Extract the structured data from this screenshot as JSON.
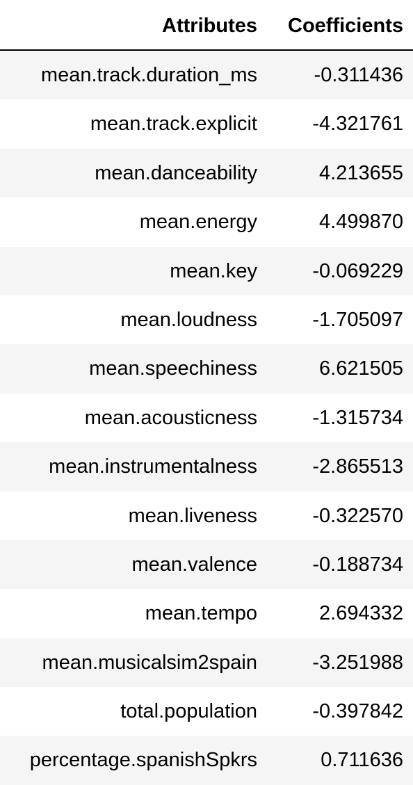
{
  "table": {
    "headers": {
      "attributes": "Attributes",
      "coefficients": "Coefficients"
    },
    "rows": [
      {
        "attribute": "mean.track.duration_ms",
        "coefficient": "-0.311436"
      },
      {
        "attribute": "mean.track.explicit",
        "coefficient": "-4.321761"
      },
      {
        "attribute": "mean.danceability",
        "coefficient": "4.213655"
      },
      {
        "attribute": "mean.energy",
        "coefficient": "4.499870"
      },
      {
        "attribute": "mean.key",
        "coefficient": "-0.069229"
      },
      {
        "attribute": "mean.loudness",
        "coefficient": "-1.705097"
      },
      {
        "attribute": "mean.speechiness",
        "coefficient": "6.621505"
      },
      {
        "attribute": "mean.acousticness",
        "coefficient": "-1.315734"
      },
      {
        "attribute": "mean.instrumentalness",
        "coefficient": "-2.865513"
      },
      {
        "attribute": "mean.liveness",
        "coefficient": "-0.322570"
      },
      {
        "attribute": "mean.valence",
        "coefficient": "-0.188734"
      },
      {
        "attribute": "mean.tempo",
        "coefficient": "2.694332"
      },
      {
        "attribute": "mean.musicalsim2spain",
        "coefficient": "-3.251988"
      },
      {
        "attribute": "total.population",
        "coefficient": "-0.397842"
      },
      {
        "attribute": "percentage.spanishSpkrs",
        "coefficient": "0.711636"
      }
    ]
  }
}
